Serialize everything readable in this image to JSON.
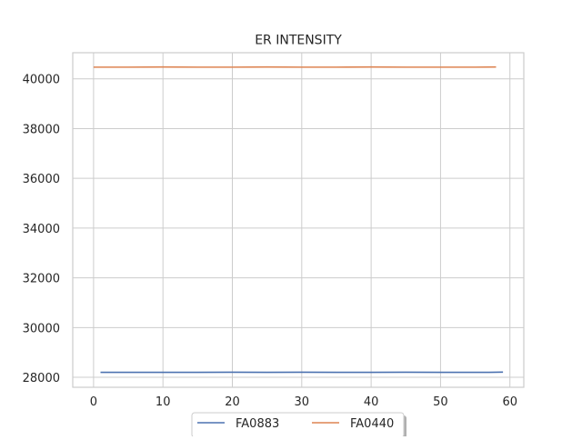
{
  "chart_data": {
    "type": "line",
    "title": "ER INTENSITY",
    "xlabel": "",
    "ylabel": "",
    "xlim": [
      -3,
      62
    ],
    "ylim": [
      27600,
      41050
    ],
    "x_ticks": [
      0,
      10,
      20,
      30,
      40,
      50,
      60
    ],
    "y_ticks": [
      28000,
      30000,
      32000,
      34000,
      36000,
      38000,
      40000
    ],
    "grid": true,
    "legend_placement": "bottom-center",
    "series": [
      {
        "name": "FA0883",
        "color": "#4c72b0",
        "x": [
          1,
          5,
          10,
          15,
          20,
          25,
          30,
          35,
          40,
          45,
          50,
          55,
          57,
          59
        ],
        "y": [
          28200,
          28200,
          28200,
          28200,
          28205,
          28200,
          28205,
          28200,
          28200,
          28205,
          28200,
          28200,
          28200,
          28210
        ]
      },
      {
        "name": "FA0440",
        "color": "#dd8452",
        "x": [
          0,
          5,
          10,
          15,
          20,
          25,
          30,
          35,
          40,
          45,
          50,
          55,
          58
        ],
        "y": [
          40470,
          40470,
          40475,
          40470,
          40470,
          40475,
          40470,
          40470,
          40475,
          40470,
          40470,
          40470,
          40475
        ]
      }
    ]
  }
}
